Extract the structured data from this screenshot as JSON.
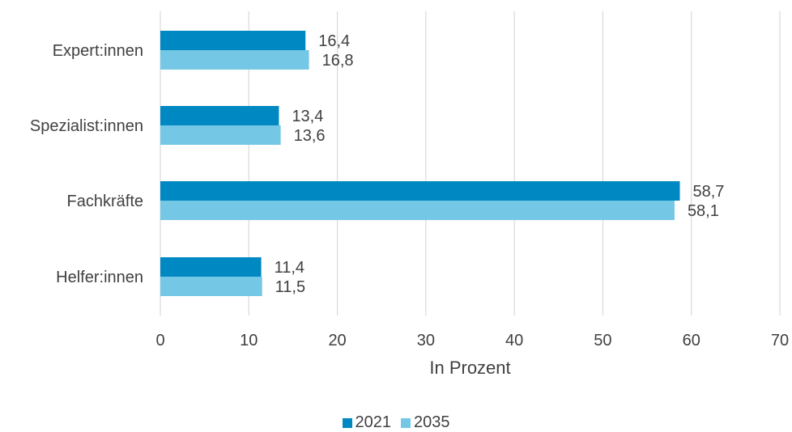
{
  "chart_data": {
    "type": "bar",
    "orientation": "horizontal",
    "categories": [
      "Expert:innen",
      "Spezialist:innen",
      "Fachkräfte",
      "Helfer:innen"
    ],
    "series": [
      {
        "name": "2021",
        "color": "#0088C2",
        "values": [
          16.4,
          13.4,
          58.7,
          11.4
        ]
      },
      {
        "name": "2035",
        "color": "#74C8E6",
        "values": [
          16.8,
          13.6,
          58.1,
          11.5
        ]
      }
    ],
    "data_labels": [
      [
        "16,4",
        "13,4",
        "58,7",
        "11,4"
      ],
      [
        "16,8",
        "13,6",
        "58,1",
        "11,5"
      ]
    ],
    "xlabel": "In Prozent",
    "xlim": [
      0,
      70
    ],
    "xticks": [
      0,
      10,
      20,
      30,
      40,
      50,
      60,
      70
    ],
    "xtick_labels": [
      "0",
      "10",
      "20",
      "30",
      "40",
      "50",
      "60",
      "70"
    ],
    "grid": "vertical",
    "legend_position": "bottom"
  }
}
